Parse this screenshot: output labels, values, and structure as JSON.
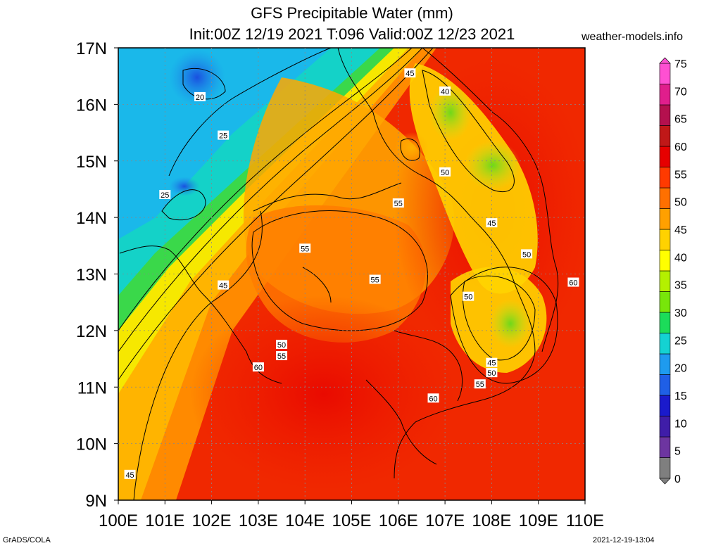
{
  "header": {
    "title": "GFS Precipitable Water (mm)",
    "subtitle": "Init:00Z 12/19 2021 T:096 Valid:00Z 12/23 2021",
    "site": "weather-models.info"
  },
  "footer": {
    "left": "GrADS/COLA",
    "right": "2021-12-19-13:04"
  },
  "map": {
    "lat_labels": [
      "17N",
      "16N",
      "15N",
      "14N",
      "13N",
      "12N",
      "11N",
      "10N",
      "9N"
    ],
    "lon_labels": [
      "100E",
      "101E",
      "102E",
      "103E",
      "104E",
      "105E",
      "106E",
      "107E",
      "108E",
      "109E",
      "110E"
    ],
    "lat_range": [
      9,
      17
    ],
    "lon_range": [
      100,
      110
    ],
    "contour_labels": [
      {
        "text": "20",
        "lon": 101.75,
        "lat": 16.13
      },
      {
        "text": "25",
        "lon": 102.25,
        "lat": 15.45
      },
      {
        "text": "25",
        "lon": 101.0,
        "lat": 14.4
      },
      {
        "text": "45",
        "lon": 106.25,
        "lat": 16.55
      },
      {
        "text": "40",
        "lon": 107.0,
        "lat": 16.23
      },
      {
        "text": "50",
        "lon": 107.0,
        "lat": 14.8
      },
      {
        "text": "55",
        "lon": 106.0,
        "lat": 14.25
      },
      {
        "text": "45",
        "lon": 108.0,
        "lat": 13.9
      },
      {
        "text": "55",
        "lon": 104.0,
        "lat": 13.45
      },
      {
        "text": "50",
        "lon": 108.75,
        "lat": 13.35
      },
      {
        "text": "55",
        "lon": 105.5,
        "lat": 12.9
      },
      {
        "text": "60",
        "lon": 109.75,
        "lat": 12.85
      },
      {
        "text": "45",
        "lon": 102.25,
        "lat": 12.8
      },
      {
        "text": "50",
        "lon": 107.5,
        "lat": 12.6
      },
      {
        "text": "50",
        "lon": 103.5,
        "lat": 11.75
      },
      {
        "text": "55",
        "lon": 103.5,
        "lat": 11.55
      },
      {
        "text": "60",
        "lon": 103.0,
        "lat": 11.35
      },
      {
        "text": "45",
        "lon": 108.0,
        "lat": 11.43
      },
      {
        "text": "50",
        "lon": 108.0,
        "lat": 11.25
      },
      {
        "text": "55",
        "lon": 107.75,
        "lat": 11.05
      },
      {
        "text": "60",
        "lon": 106.75,
        "lat": 10.8
      },
      {
        "text": "45",
        "lon": 100.25,
        "lat": 9.45
      }
    ]
  },
  "colorbar": {
    "labels": [
      "0",
      "5",
      "10",
      "15",
      "20",
      "25",
      "30",
      "35",
      "40",
      "45",
      "50",
      "55",
      "60",
      "65",
      "70",
      "75"
    ],
    "colors": [
      "#7f7f7f",
      "#6d35a0",
      "#3f1da8",
      "#1a1acc",
      "#1f5fe6",
      "#1e9bef",
      "#14d2d2",
      "#1cdc5a",
      "#78e60a",
      "#b4f000",
      "#ffff00",
      "#ffd200",
      "#ffa000",
      "#ff7000",
      "#ff3a00",
      "#e60000",
      "#c01818",
      "#b4104e",
      "#e01e8c",
      "#ff50d2"
    ]
  }
}
